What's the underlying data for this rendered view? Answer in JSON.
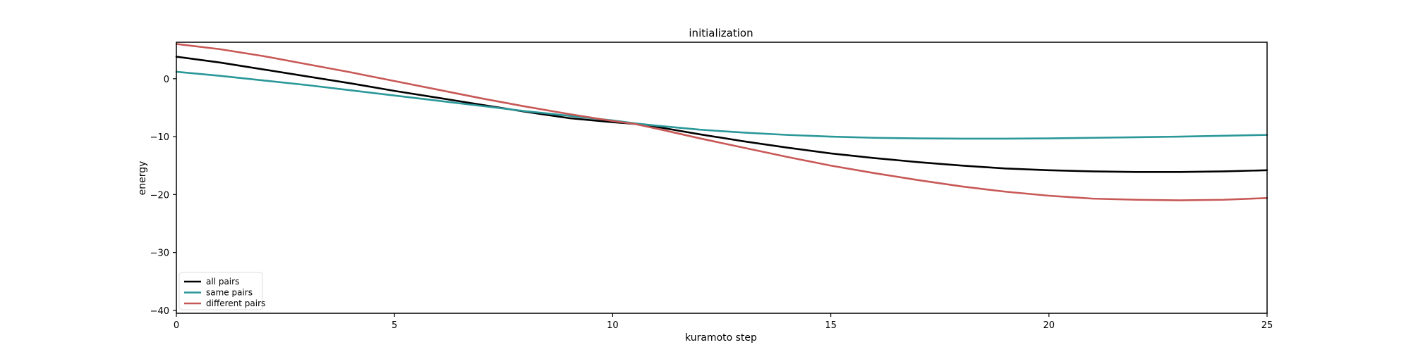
{
  "chart_data": {
    "type": "line",
    "title": "initialization",
    "xlabel": "kuramoto step",
    "ylabel": "energy",
    "xlim": [
      0,
      25
    ],
    "ylim": [
      -40.5,
      6.3
    ],
    "xticks": [
      0,
      5,
      10,
      15,
      20,
      25
    ],
    "yticks": [
      0,
      -10,
      -20,
      -30,
      -40
    ],
    "xtick_labels": [
      "0",
      "5",
      "10",
      "15",
      "20",
      "25"
    ],
    "ytick_labels": [
      "0",
      "−10",
      "−20",
      "−30",
      "−40"
    ],
    "grid": false,
    "legend_position": "lower-left",
    "x": [
      0,
      1,
      2,
      3,
      4,
      5,
      6,
      7,
      8,
      9,
      10,
      10.5,
      11,
      12,
      13,
      14,
      15,
      16,
      17,
      18,
      19,
      20,
      21,
      22,
      23,
      24,
      25
    ],
    "series": [
      {
        "name": "all pairs",
        "color": "#000000",
        "values": [
          3.8,
          2.8,
          1.6,
          0.4,
          -0.8,
          -2.1,
          -3.3,
          -4.5,
          -5.7,
          -6.8,
          -7.5,
          -7.8,
          -8.3,
          -9.6,
          -10.8,
          -11.9,
          -12.9,
          -13.7,
          -14.4,
          -15.0,
          -15.5,
          -15.8,
          -16.0,
          -16.1,
          -16.1,
          -16.0,
          -15.8
        ]
      },
      {
        "name": "same pairs",
        "color": "#2a9799",
        "values": [
          1.2,
          0.5,
          -0.3,
          -1.1,
          -2.0,
          -2.9,
          -3.8,
          -4.7,
          -5.6,
          -6.4,
          -7.2,
          -7.7,
          -8.1,
          -8.8,
          -9.3,
          -9.7,
          -10.0,
          -10.2,
          -10.3,
          -10.35,
          -10.35,
          -10.3,
          -10.2,
          -10.1,
          -10.0,
          -9.85,
          -9.7
        ]
      },
      {
        "name": "different pairs",
        "color": "#c75856",
        "values": [
          6.0,
          5.1,
          3.9,
          2.5,
          1.1,
          -0.4,
          -1.9,
          -3.4,
          -4.8,
          -6.1,
          -7.3,
          -7.8,
          -8.6,
          -10.3,
          -11.9,
          -13.5,
          -15.0,
          -16.3,
          -17.5,
          -18.6,
          -19.5,
          -20.2,
          -20.7,
          -20.9,
          -21.0,
          -20.9,
          -20.6
        ]
      }
    ]
  }
}
